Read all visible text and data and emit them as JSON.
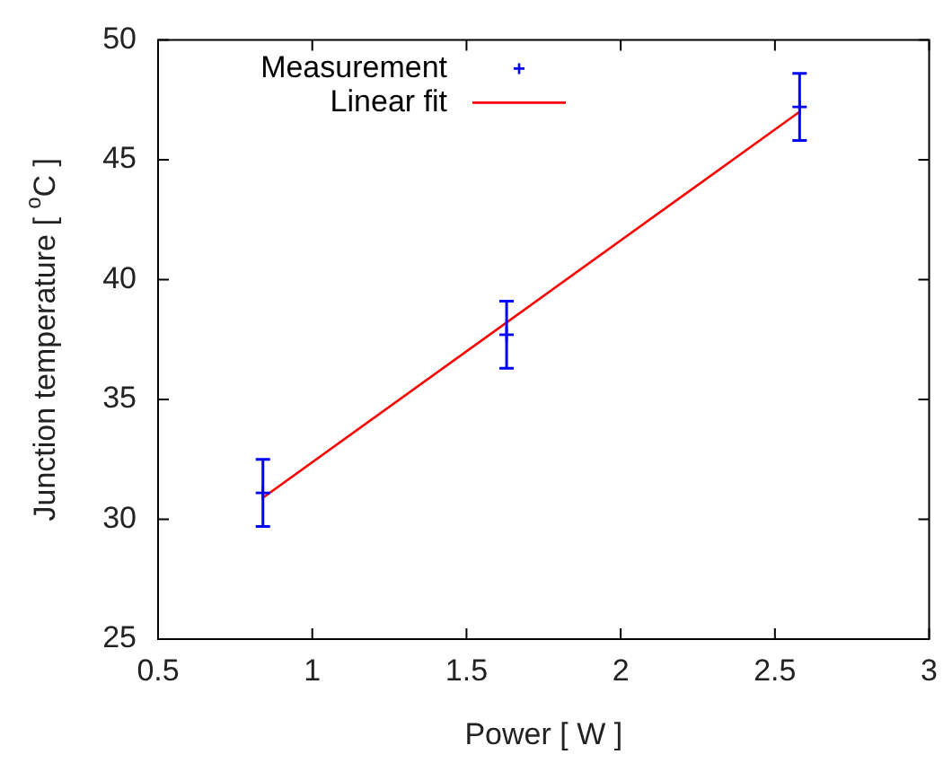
{
  "chart_data": {
    "type": "scatter",
    "xlabel": "Power [ W ]",
    "ylabel": "Junction temperature [ $^{o}$C ]",
    "xlim": [
      0.5,
      3
    ],
    "xticks": [
      0.5,
      1,
      1.5,
      2,
      2.5,
      3
    ],
    "ylim": [
      25,
      50
    ],
    "yticks": [
      25,
      30,
      35,
      40,
      45,
      50
    ],
    "grid": false,
    "legend": "top left",
    "marker": "cross",
    "series": [
      {
        "name": "Measurement",
        "type": "scatter",
        "color": "#0000ff",
        "x": [
          0.84,
          1.63,
          2.58
        ],
        "values": [
          31.1,
          37.7,
          47.2
        ],
        "errors": [
          1.4,
          1.4,
          1.4
        ]
      },
      {
        "name": "Linear fit",
        "type": "line",
        "marker": "none",
        "color": "#ff0000",
        "x": [
          0.84,
          2.58
        ],
        "values": [
          30.9,
          47.0
        ]
      }
    ]
  }
}
